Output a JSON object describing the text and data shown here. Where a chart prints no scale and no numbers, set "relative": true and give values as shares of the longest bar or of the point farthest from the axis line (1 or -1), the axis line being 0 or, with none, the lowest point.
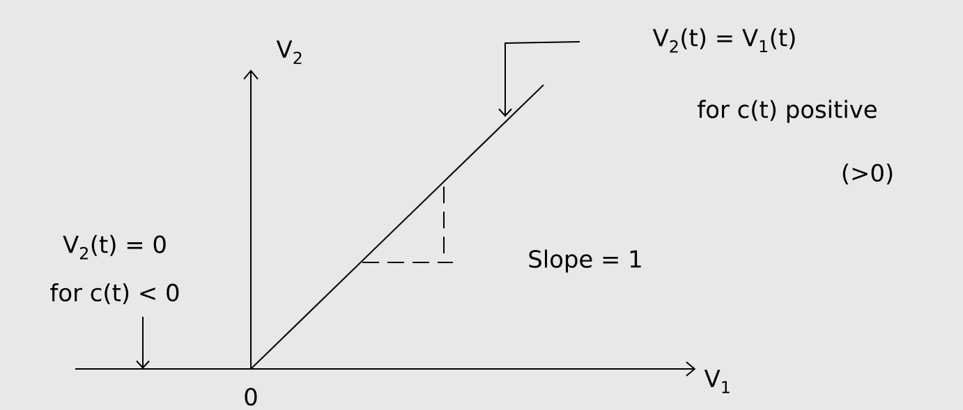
{
  "chart_data": {
    "type": "line",
    "relative": true,
    "ylabel": "V$_{2}$",
    "categories": [
      null,
      null,
      null,
      null,
      null,
      null,
      null,
      null,
      null
    ],
    "values": [
      0,
      0,
      0,
      0,
      0.2,
      0.4,
      0.6,
      0.8,
      1.0
    ],
    "color": "#111111",
    "annotations": [
      "V$_{2}$(t) = V$_{1}$(t)",
      "for c(t) positive",
      "(>0)",
      "Slope = 1",
      "V$_{2}$(t) = 0",
      "for c(t) < 0",
      "0",
      "V$_{1}$"
    ]
  }
}
